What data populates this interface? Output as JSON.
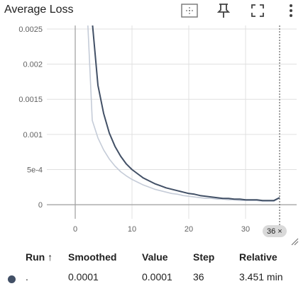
{
  "card": {
    "title": "Average Loss"
  },
  "toolbar": {
    "icons": [
      "fit-domain-icon",
      "pin-icon",
      "fullscreen-icon",
      "more-vert-icon"
    ]
  },
  "chart_data": {
    "type": "line",
    "xlim": [
      -5,
      39
    ],
    "ylim": [
      -0.0002,
      0.00255
    ],
    "x_ticks": [
      0,
      10,
      20,
      30
    ],
    "y_ticks": [
      0,
      0.0005,
      0.001,
      0.0015,
      0.002,
      0.0025
    ],
    "y_tick_labels": [
      "0",
      "5e-4",
      "0.001",
      "0.0015",
      "0.002",
      "0.0025"
    ],
    "grid": true,
    "series": [
      {
        "role": "raw",
        "color": "#c5ccd8",
        "x": [
          2.2,
          3,
          4,
          5,
          6,
          7,
          8,
          9,
          10,
          11,
          12,
          13,
          14,
          15,
          16,
          17,
          18,
          19,
          20,
          21,
          22,
          23,
          24,
          25,
          26,
          27,
          28,
          29,
          30,
          31,
          32,
          33,
          34,
          35,
          36
        ],
        "y": [
          0.0026,
          0.0012,
          0.00095,
          0.00078,
          0.00065,
          0.00055,
          0.00047,
          0.00041,
          0.00036,
          0.00032,
          0.00028,
          0.00025,
          0.00022,
          0.0002,
          0.00018,
          0.00016,
          0.00015,
          0.00013,
          0.00012,
          0.00011,
          0.0001,
          9e-05,
          9e-05,
          8e-05,
          8e-05,
          7e-05,
          7e-05,
          6e-05,
          6e-05,
          6e-05,
          6e-05,
          5e-05,
          5e-05,
          5e-05,
          0.0001
        ]
      },
      {
        "role": "smoothed",
        "color": "#425066",
        "x": [
          3,
          4,
          5,
          6,
          7,
          8,
          9,
          10,
          11,
          12,
          13,
          14,
          15,
          16,
          17,
          18,
          19,
          20,
          21,
          22,
          23,
          24,
          25,
          26,
          27,
          28,
          29,
          30,
          31,
          32,
          33,
          34,
          35,
          36
        ],
        "y": [
          0.0026,
          0.0017,
          0.0013,
          0.00102,
          0.00083,
          0.00069,
          0.00058,
          0.0005,
          0.00044,
          0.00038,
          0.00034,
          0.0003,
          0.00027,
          0.00024,
          0.00022,
          0.0002,
          0.00018,
          0.00016,
          0.00015,
          0.00013,
          0.00012,
          0.00011,
          0.0001,
          9e-05,
          9e-05,
          8e-05,
          8e-05,
          7e-05,
          7e-05,
          7e-05,
          6e-05,
          6e-05,
          6e-05,
          0.0001
        ]
      }
    ],
    "cursor_step": 36
  },
  "step_chip": {
    "label": "36",
    "close": "×"
  },
  "table": {
    "headers": {
      "run": "Run ↑",
      "smoothed": "Smoothed",
      "value": "Value",
      "step": "Step",
      "relative": "Relative"
    },
    "row": {
      "run": ".",
      "smoothed": "0.0001",
      "value": "0.0001",
      "step": "36",
      "relative": "3.451 min",
      "color": "#425066"
    }
  }
}
